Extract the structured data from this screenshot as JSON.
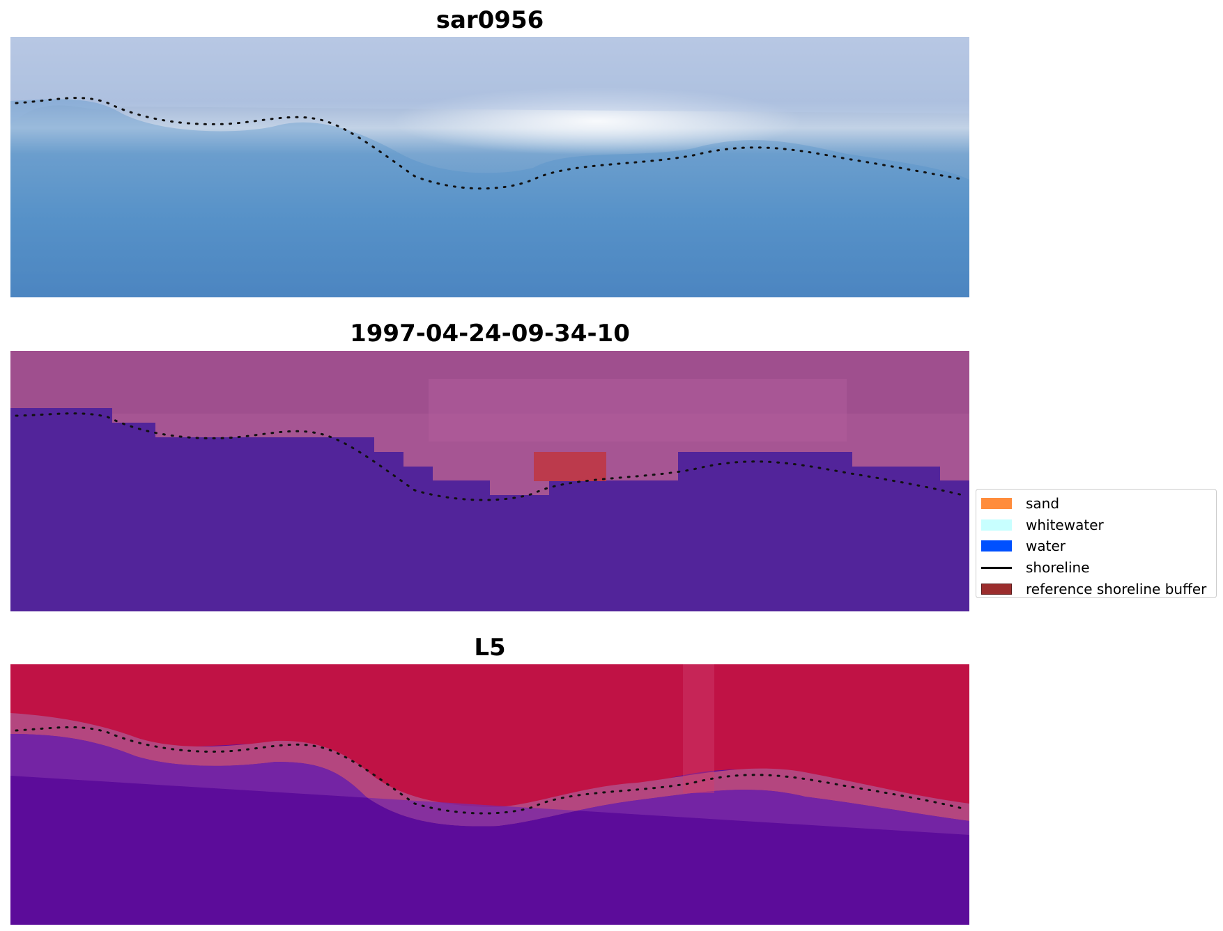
{
  "panels": [
    {
      "title": "sar0956"
    },
    {
      "title": "1997-04-24-09-34-10"
    },
    {
      "title": "L5"
    }
  ],
  "legend": {
    "items": [
      {
        "label": "sand",
        "color": "#ff8c3c",
        "type": "patch"
      },
      {
        "label": "whitewater",
        "color": "#c8ffff",
        "type": "patch"
      },
      {
        "label": "water",
        "color": "#0050ff",
        "type": "patch"
      },
      {
        "label": "shoreline",
        "color": "#000000",
        "type": "line"
      },
      {
        "label": "reference shoreline buffer",
        "color": "#9b2d2d",
        "type": "patch"
      }
    ]
  }
}
